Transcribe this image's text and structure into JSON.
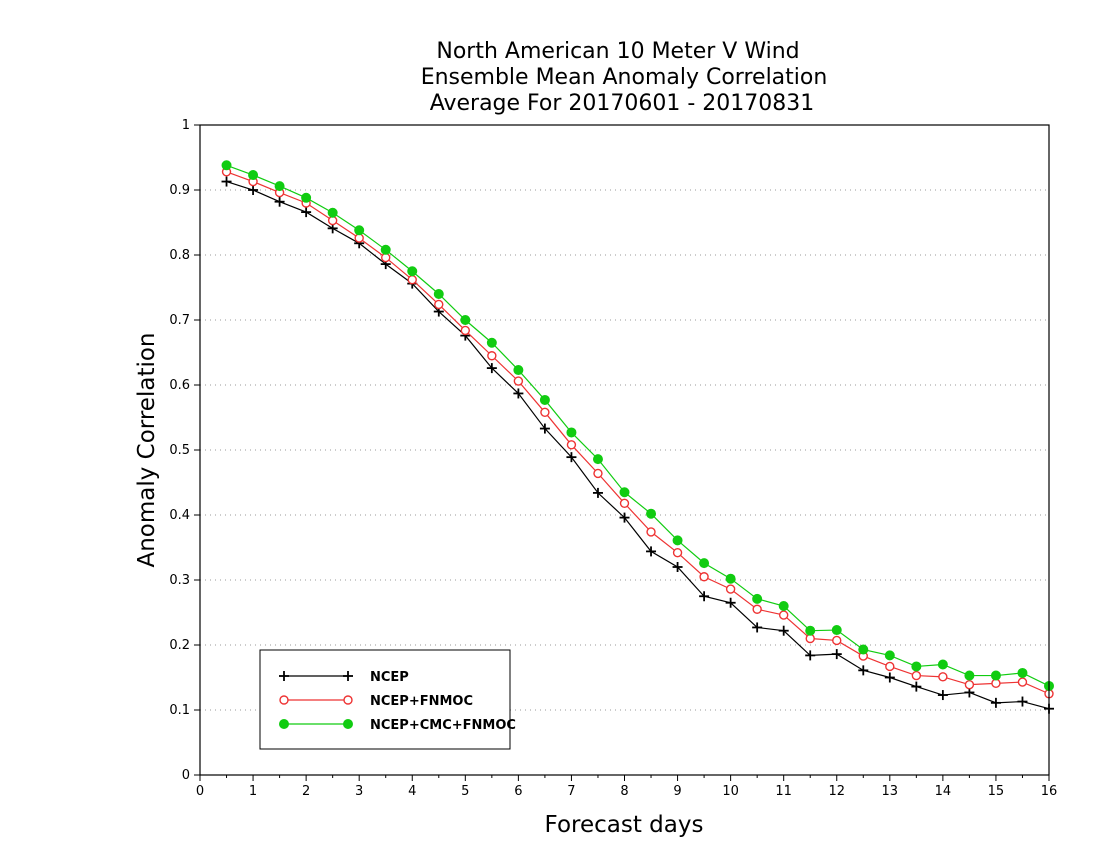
{
  "chart_data": {
    "type": "line",
    "title": [
      "North American 10 Meter V Wind",
      "Ensemble Mean Anomaly Correlation",
      "Average For 20170601 - 20170831"
    ],
    "xlabel": "Forecast days",
    "ylabel": "Anomaly Correlation",
    "xlim": [
      0,
      16
    ],
    "ylim": [
      0,
      1
    ],
    "x_ticks": [
      "0",
      "1",
      "2",
      "3",
      "4",
      "5",
      "6",
      "7",
      "8",
      "9",
      "10",
      "11",
      "12",
      "13",
      "14",
      "15",
      "16"
    ],
    "y_ticks": [
      "0",
      "0.1",
      "0.2",
      "0.3",
      "0.4",
      "0.5",
      "0.6",
      "0.7",
      "0.8",
      "0.9",
      "1"
    ],
    "grid": "horizontal-dotted",
    "legend_position": "bottom-left",
    "x": [
      0.5,
      1,
      1.5,
      2,
      2.5,
      3,
      3.5,
      4,
      4.5,
      5,
      5.5,
      6,
      6.5,
      7,
      7.5,
      8,
      8.5,
      9,
      9.5,
      10,
      10.5,
      11,
      11.5,
      12,
      12.5,
      13,
      13.5,
      14,
      14.5,
      15,
      15.5,
      16
    ],
    "series": [
      {
        "name": "NCEP",
        "color": "#000000",
        "marker": "plus",
        "values": [
          0.913,
          0.9,
          0.882,
          0.866,
          0.841,
          0.818,
          0.786,
          0.756,
          0.713,
          0.676,
          0.626,
          0.587,
          0.533,
          0.489,
          0.434,
          0.396,
          0.344,
          0.32,
          0.275,
          0.265,
          0.227,
          0.222,
          0.184,
          0.186,
          0.161,
          0.15,
          0.136,
          0.123,
          0.127,
          0.111,
          0.113,
          0.102
        ]
      },
      {
        "name": "NCEP+FNMOC",
        "color": "#ee3333",
        "marker": "open-circle",
        "values": [
          0.928,
          0.913,
          0.896,
          0.88,
          0.853,
          0.826,
          0.796,
          0.762,
          0.724,
          0.684,
          0.645,
          0.606,
          0.558,
          0.508,
          0.464,
          0.418,
          0.374,
          0.342,
          0.305,
          0.286,
          0.255,
          0.246,
          0.21,
          0.207,
          0.183,
          0.167,
          0.153,
          0.151,
          0.139,
          0.141,
          0.143,
          0.125
        ]
      },
      {
        "name": "NCEP+CMC+FNMOC",
        "color": "#11cc11",
        "marker": "filled-circle",
        "values": [
          0.938,
          0.923,
          0.906,
          0.888,
          0.865,
          0.838,
          0.808,
          0.775,
          0.74,
          0.7,
          0.665,
          0.623,
          0.577,
          0.527,
          0.486,
          0.435,
          0.402,
          0.361,
          0.326,
          0.302,
          0.271,
          0.26,
          0.222,
          0.223,
          0.193,
          0.184,
          0.167,
          0.17,
          0.153,
          0.153,
          0.157,
          0.137
        ]
      }
    ]
  }
}
